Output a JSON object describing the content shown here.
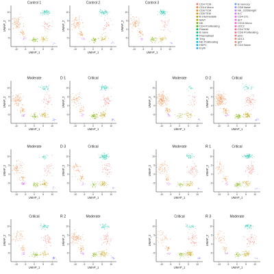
{
  "chart_data": {
    "type": "scatter",
    "xlabel": "UMAP_1",
    "ylabel": "UMAP_2",
    "x_ticks": [
      "-10",
      "-5",
      "0",
      "5",
      "10"
    ],
    "y_ticks": [
      "-5",
      "0",
      "5",
      "10"
    ],
    "xlim": [
      -13,
      13
    ],
    "ylim": [
      -10,
      14
    ],
    "legend_position": "top-right",
    "cell_types": [
      {
        "name": "CD4 TCM",
        "color": "#f8766d"
      },
      {
        "name": "CD14 Mono",
        "color": "#f17f3b"
      },
      {
        "name": "CD8 TCM",
        "color": "#e88526"
      },
      {
        "name": "CD8 TEM",
        "color": "#d89000"
      },
      {
        "name": "B intermediate",
        "color": "#c09b00"
      },
      {
        "name": "MAIT",
        "color": "#a3a500"
      },
      {
        "name": "NK",
        "color": "#7cae00"
      },
      {
        "name": "CD4 Proliferating",
        "color": "#39b600"
      },
      {
        "name": "Platelet",
        "color": "#00bb4e"
      },
      {
        "name": "B naive",
        "color": "#00bf7d"
      },
      {
        "name": "Plasmablast",
        "color": "#00c1a3"
      },
      {
        "name": "Treg",
        "color": "#00bfc4"
      },
      {
        "name": "NK Proliferating",
        "color": "#00bae0"
      },
      {
        "name": "HSPC",
        "color": "#00b0f6"
      },
      {
        "name": "Eryth",
        "color": "#35a2ff"
      },
      {
        "name": "B memory",
        "color": "#619cff"
      },
      {
        "name": "CD8 Naive",
        "color": "#9590ff"
      },
      {
        "name": "NK_CD56bright",
        "color": "#b983ff"
      },
      {
        "name": "ILC",
        "color": "#d575fe"
      },
      {
        "name": "CD4 CTL",
        "color": "#e76bf3"
      },
      {
        "name": "dnT",
        "color": "#f564e3"
      },
      {
        "name": "CD16 Mono",
        "color": "#fd61d1"
      },
      {
        "name": "cDC2",
        "color": "#ff62bc"
      },
      {
        "name": "CD4 TEM",
        "color": "#ff67a4"
      },
      {
        "name": "CD8 Proliferating",
        "color": "#ff6c91"
      },
      {
        "name": "pDC",
        "color": "#f0707f"
      },
      {
        "name": "cDC1",
        "color": "#e7866a"
      },
      {
        "name": "gdT",
        "color": "#d1947a"
      },
      {
        "name": "CD4 Naive",
        "color": "#c99a86"
      }
    ],
    "clusters": [
      {
        "id": "mono",
        "x": -9.5,
        "y": 3.5,
        "sx": 2.6,
        "sy": 3.0,
        "color": "#f17f3b"
      },
      {
        "id": "mono-tail",
        "x": -6.5,
        "y": -2.5,
        "sx": 1.2,
        "sy": 1.6,
        "color": "#e88526"
      },
      {
        "id": "dc",
        "x": -6.0,
        "y": -5.5,
        "sx": 0.9,
        "sy": 0.8,
        "color": "#d575fe"
      },
      {
        "id": "nk",
        "x": 0.5,
        "y": -6.0,
        "sx": 1.6,
        "sy": 1.2,
        "color": "#7cae00"
      },
      {
        "id": "b",
        "x": 5.5,
        "y": -5.5,
        "sx": 2.0,
        "sy": 1.4,
        "color": "#c09b00"
      },
      {
        "id": "t4",
        "x": 7.5,
        "y": 2.5,
        "sx": 2.2,
        "sy": 3.2,
        "color": "#f8766d"
      },
      {
        "id": "t8",
        "x": 6.0,
        "y": 10.0,
        "sx": 2.0,
        "sy": 1.2,
        "color": "#00c1a3"
      },
      {
        "id": "plt",
        "x": 11.0,
        "y": -8.0,
        "sx": 0.8,
        "sy": 0.6,
        "color": "#9590ff"
      }
    ],
    "panels": [
      {
        "title": "Control 1",
        "weights": [
          1,
          0.35,
          0.15,
          0.6,
          0.5,
          0.5,
          0.8,
          0.1
        ]
      },
      {
        "title": "Control 2",
        "weights": [
          1,
          0.35,
          0.15,
          0.6,
          0.5,
          0.5,
          0.8,
          0.1
        ]
      },
      {
        "title": "Control 3",
        "weights": [
          1,
          0.35,
          0.15,
          0.6,
          0.5,
          0.5,
          0.8,
          0.1
        ]
      },
      {
        "title": "Moderate",
        "group": "D 1",
        "weights": [
          1.2,
          0.4,
          0.25,
          0.6,
          0.6,
          0.6,
          0.5,
          0.2
        ]
      },
      {
        "title": "Critical",
        "weights": [
          0.7,
          0.3,
          0.15,
          0.9,
          0.7,
          0.8,
          0.7,
          0.2
        ]
      },
      {
        "title": "Moderate",
        "group": "D 2",
        "weights": [
          2.0,
          0.5,
          0.2,
          0.3,
          0.5,
          0.4,
          0.2,
          0.1
        ]
      },
      {
        "title": "Critical",
        "weights": [
          2.2,
          0.5,
          0.2,
          0.8,
          0.9,
          1.0,
          0.4,
          0.2
        ]
      },
      {
        "title": "Moderate",
        "group": "D 3",
        "weights": [
          0.9,
          0.3,
          0.4,
          0.5,
          0.6,
          0.5,
          0.3,
          0.1
        ]
      },
      {
        "title": "Critical",
        "weights": [
          0.6,
          0.3,
          0.15,
          0.4,
          0.7,
          0.7,
          1.0,
          0.1
        ]
      },
      {
        "title": "Moderate",
        "group": "R 1",
        "weights": [
          0.8,
          0.3,
          0.15,
          0.4,
          0.6,
          0.8,
          0.5,
          0.1
        ]
      },
      {
        "title": "Critical",
        "weights": [
          0.5,
          0.3,
          0.15,
          0.7,
          0.6,
          0.9,
          0.9,
          0.1
        ]
      },
      {
        "title": "Critical",
        "group": "R 2",
        "weights": [
          0.6,
          0.3,
          0.2,
          0.6,
          0.5,
          0.7,
          0.5,
          0.4
        ]
      },
      {
        "title": "Moderate",
        "weights": [
          1.2,
          0.4,
          0.2,
          0.5,
          0.9,
          0.7,
          0.5,
          0.2
        ]
      },
      {
        "title": "Critical",
        "group": "R 3",
        "weights": [
          0.5,
          0.3,
          0.15,
          0.5,
          0.9,
          0.8,
          0.4,
          0.2
        ]
      },
      {
        "title": "Moderate",
        "weights": [
          0.5,
          0.25,
          0.15,
          0.5,
          0.7,
          0.8,
          0.6,
          0.1
        ]
      }
    ]
  }
}
